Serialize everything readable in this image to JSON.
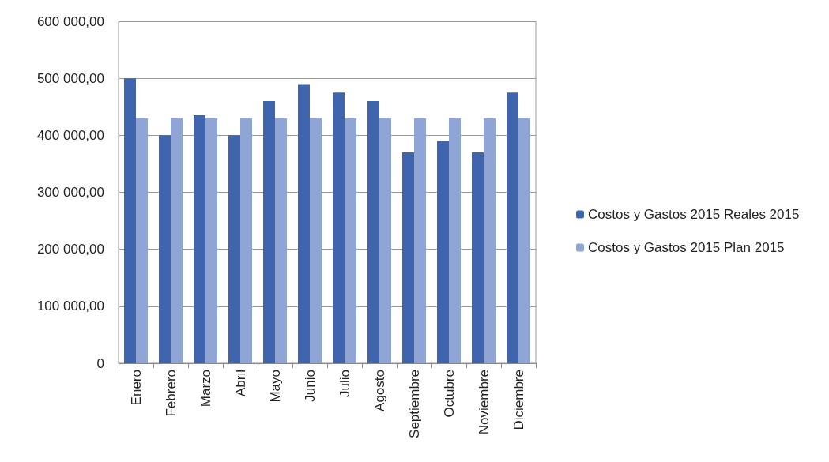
{
  "chart_data": {
    "type": "bar",
    "categories": [
      "Enero",
      "Febrero",
      "Marzo",
      "Abril",
      "Mayo",
      "Junio",
      "Julio",
      "Agosto",
      "Septiembre",
      "Octubre",
      "Noviembre",
      "Diciembre"
    ],
    "series": [
      {
        "name": "Costos y Gastos 2015 Reales 2015",
        "color": "#3f65ae",
        "values": [
          500000,
          400000,
          435000,
          400000,
          460000,
          490000,
          475000,
          460000,
          370000,
          390000,
          370000,
          475000
        ]
      },
      {
        "name": "Costos y Gastos 2015 Plan 2015",
        "color": "#8ea5d5",
        "values": [
          430000,
          430000,
          430000,
          430000,
          430000,
          430000,
          430000,
          430000,
          430000,
          430000,
          430000,
          430000
        ]
      }
    ],
    "ylim": [
      0,
      600000
    ],
    "yticks": [
      0,
      {
        "value": 100000,
        "label": "100 000,00"
      },
      {
        "value": 200000,
        "label": "200 000,00"
      },
      {
        "value": 300000,
        "label": "300 000,00"
      },
      {
        "value": 400000,
        "label": "400 000,00"
      },
      {
        "value": 500000,
        "label": "500 000,00"
      },
      {
        "value": 600000,
        "label": "600 000,00"
      }
    ],
    "grid": "y",
    "legend": "right"
  }
}
